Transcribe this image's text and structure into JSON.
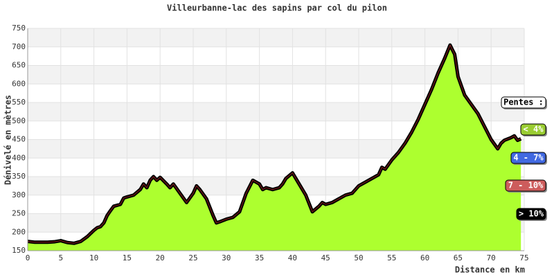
{
  "chart_data": {
    "type": "area",
    "title": "Villeurbanne-lac des sapins par col du pilon",
    "xlabel": "Distance en km",
    "ylabel": "Dénivelé en mètres",
    "x": [
      0,
      1,
      2,
      3,
      4,
      5,
      6,
      7,
      8,
      9,
      10,
      10.5,
      11,
      11.5,
      12,
      12.5,
      13,
      14,
      14.5,
      15,
      16,
      17,
      17.5,
      18,
      18.5,
      19,
      19.5,
      20,
      21,
      21.5,
      22,
      23,
      24,
      25,
      25.5,
      26,
      27,
      28,
      28.5,
      29,
      30,
      31,
      32,
      33,
      34,
      35,
      35.5,
      36,
      37,
      38,
      38.5,
      39,
      40,
      41,
      42,
      43,
      44,
      44.5,
      45,
      46,
      47,
      48,
      49,
      50,
      51,
      52,
      53,
      53.5,
      54,
      55,
      56,
      57,
      58,
      59,
      60,
      61,
      62,
      63,
      63.8,
      64.5,
      65,
      66,
      67,
      68,
      69,
      70,
      71,
      71.5,
      72,
      73,
      73.5,
      74,
      74.5
    ],
    "values": [
      175,
      173,
      173,
      173,
      174,
      177,
      172,
      170,
      175,
      188,
      205,
      212,
      215,
      225,
      245,
      258,
      270,
      275,
      292,
      295,
      300,
      315,
      330,
      320,
      340,
      350,
      340,
      348,
      330,
      320,
      330,
      305,
      280,
      305,
      325,
      315,
      290,
      245,
      225,
      228,
      235,
      240,
      255,
      305,
      340,
      330,
      315,
      320,
      315,
      320,
      330,
      345,
      360,
      330,
      300,
      255,
      270,
      280,
      275,
      280,
      290,
      300,
      305,
      325,
      335,
      345,
      355,
      375,
      370,
      395,
      415,
      440,
      470,
      505,
      545,
      585,
      630,
      670,
      705,
      680,
      620,
      570,
      545,
      520,
      485,
      450,
      425,
      440,
      448,
      455,
      460,
      448,
      452
    ],
    "fill": "#adff2f",
    "line_color": "#000000",
    "xlim": [
      0,
      75
    ],
    "xticks": [
      0,
      5,
      10,
      15,
      20,
      25,
      30,
      35,
      40,
      45,
      50,
      55,
      60,
      65,
      70,
      75
    ],
    "ylim": [
      150,
      750
    ],
    "yticks": [
      150,
      200,
      250,
      300,
      350,
      400,
      450,
      500,
      550,
      600,
      650,
      700,
      750
    ],
    "grid": true,
    "legend": {
      "title": "Pentes :",
      "items": [
        {
          "label": "< 4%",
          "color": "#9acd32"
        },
        {
          "label": "4 - 7%",
          "color": "#4169e1"
        },
        {
          "label": "7 - 10%",
          "color": "#cd5c5c"
        },
        {
          "label": "> 10%",
          "color": "#000000"
        }
      ]
    }
  }
}
